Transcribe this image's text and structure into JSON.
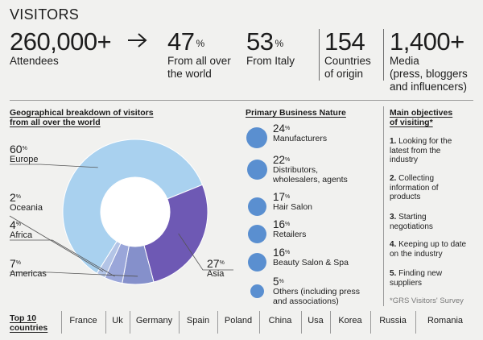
{
  "title": "VISITORS",
  "stats": {
    "attendees": {
      "value": "260,000+",
      "label_1": "Attendees"
    },
    "world": {
      "value": "47",
      "sup": "%",
      "label_1": "From all over",
      "label_2": "the world"
    },
    "italy": {
      "value": "53",
      "sup": "%",
      "label_1": "From Italy"
    },
    "countries": {
      "value": "154",
      "label_1": "Countries",
      "label_2": "of origin"
    },
    "media": {
      "value": "1,400+",
      "label_1": "Media",
      "label_2": "(press, bloggers",
      "label_3": "and influencers)"
    }
  },
  "geo": {
    "title_1": "Geographical breakdown of visitors",
    "title_2": "from all over the world"
  },
  "chart_data": {
    "type": "pie",
    "variant": "donut",
    "title": "Geographical breakdown of visitors from all over the world",
    "categories": [
      "Europe",
      "Asia",
      "Americas",
      "Africa",
      "Oceania"
    ],
    "values": [
      60,
      27,
      7,
      4,
      2
    ],
    "colors": [
      "#a9d1ef",
      "#6e59b4",
      "#8590cb",
      "#9aa6d9",
      "#b3c4e6"
    ],
    "labels": [
      {
        "pct": "60",
        "sup": "%",
        "name": "Europe"
      },
      {
        "pct": "27",
        "sup": "%",
        "name": "Asia"
      },
      {
        "pct": "7",
        "sup": "%",
        "name": "Americas"
      },
      {
        "pct": "4",
        "sup": "%",
        "name": "Africa"
      },
      {
        "pct": "2",
        "sup": "%",
        "name": "Oceania"
      }
    ]
  },
  "business": {
    "title": "Primary Business Nature",
    "items": [
      {
        "pct": "24",
        "sup": "%",
        "name_1": "Manufacturers",
        "name_2": "",
        "value": 24
      },
      {
        "pct": "22",
        "sup": "%",
        "name_1": "Distributors,",
        "name_2": "wholesalers, agents",
        "value": 22
      },
      {
        "pct": "17",
        "sup": "%",
        "name_1": "Hair Salon",
        "name_2": "",
        "value": 17
      },
      {
        "pct": "16",
        "sup": "%",
        "name_1": "Retailers",
        "name_2": "",
        "value": 16
      },
      {
        "pct": "16",
        "sup": "%",
        "name_1": "Beauty Salon & Spa",
        "name_2": "",
        "value": 16
      },
      {
        "pct": "5",
        "sup": "%",
        "name_1": "Others (including press",
        "name_2": "and associations)",
        "value": 5
      }
    ],
    "color": "#5a8fd0"
  },
  "objectives": {
    "title_1": "Main objectives",
    "title_2": "of visiting*",
    "items": [
      {
        "num": "1.",
        "l1": "Looking for the",
        "l2": "latest from the",
        "l3": "industry"
      },
      {
        "num": "2.",
        "l1": "Collecting",
        "l2": "information of",
        "l3": "products"
      },
      {
        "num": "3.",
        "l1": "Starting",
        "l2": "negotiations",
        "l3": ""
      },
      {
        "num": "4.",
        "l1": "Keeping up to date",
        "l2": "on the industry",
        "l3": ""
      },
      {
        "num": "5.",
        "l1": "Finding new",
        "l2": "suppliers",
        "l3": ""
      }
    ],
    "note": "*GRS Visitors' Survey"
  },
  "countries": {
    "title_1": "Top 10",
    "title_2": "countries",
    "list": [
      "France",
      "Uk",
      "Germany",
      "Spain",
      "Poland",
      "China",
      "Usa",
      "Korea",
      "Russia",
      "Romania"
    ]
  }
}
